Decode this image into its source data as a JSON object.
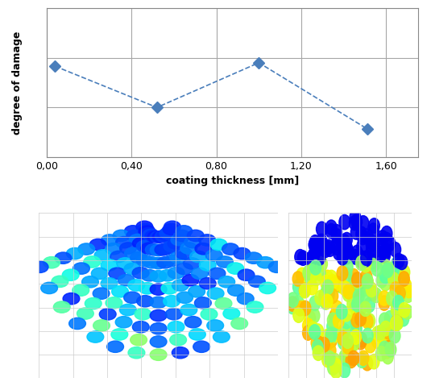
{
  "chart_data": {
    "type": "line",
    "x": [
      0.04,
      0.52,
      1.0,
      1.51
    ],
    "values": [
      1.83,
      1.0,
      1.9,
      0.57
    ],
    "x_label": "coating thickness [mm]",
    "y_label": "degree of damage",
    "xlim": [
      0,
      1.75
    ],
    "xticks": [
      {
        "value": 0,
        "label": "0,00"
      },
      {
        "value": 0.4,
        "label": "0,40"
      },
      {
        "value": 0.8,
        "label": "0,80"
      },
      {
        "value": 1.2,
        "label": "1,20"
      },
      {
        "value": 1.6,
        "label": "1,60"
      }
    ],
    "ylim": [
      0,
      3
    ],
    "yticks": [
      0,
      1,
      2,
      3
    ],
    "tick_labels": "x",
    "grid": true,
    "color": "#4a7ebb",
    "marker": "diamond",
    "line_style": "dashed"
  }
}
